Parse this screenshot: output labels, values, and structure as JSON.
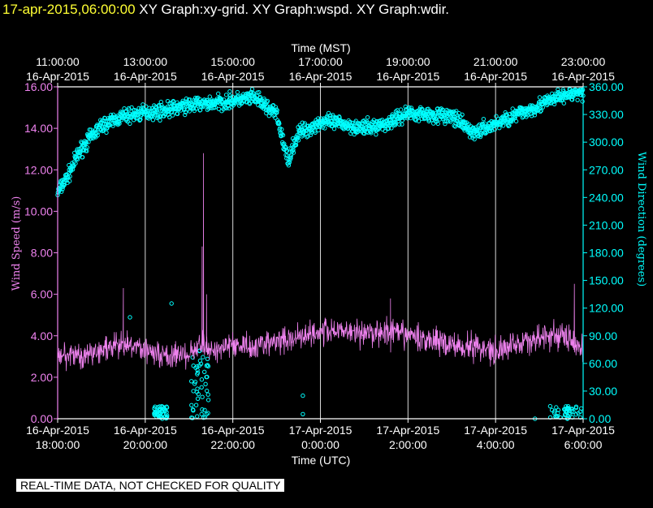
{
  "header": {
    "timestamp": "17-apr-2015,06:00:00",
    "graphs": [
      "XY Graph:xy-grid.",
      "XY Graph:wspd.",
      "XY Graph:wdir."
    ]
  },
  "footer": {
    "qc_notice": "REAL-TIME DATA, NOT CHECKED FOR QUALITY"
  },
  "colors": {
    "background": "#000000",
    "axis": "#ffffff",
    "wind_speed": "#ee82ee",
    "wind_direction": "#00ffff",
    "timestamp": "#ffff33"
  },
  "chart_data": {
    "type": "line",
    "top_axis_title": "Time (MST)",
    "bottom_axis_title": "Time (UTC)",
    "left_axis_title": "Wind Speed  (m/s)",
    "right_axis_title": "Wind Direction  (degrees)",
    "grid": "vertical",
    "x_range_utc": [
      "16-Apr-2015 18:00:00",
      "17-Apr-2015 06:00:00"
    ],
    "x_ticks_utc": [
      {
        "date": "16-Apr-2015",
        "time": "18:00:00"
      },
      {
        "date": "16-Apr-2015",
        "time": "20:00:00"
      },
      {
        "date": "16-Apr-2015",
        "time": "22:00:00"
      },
      {
        "date": "17-Apr-2015",
        "time": "0:00:00"
      },
      {
        "date": "17-Apr-2015",
        "time": "2:00:00"
      },
      {
        "date": "17-Apr-2015",
        "time": "4:00:00"
      },
      {
        "date": "17-Apr-2015",
        "time": "6:00:00"
      }
    ],
    "x_ticks_mst": [
      {
        "time": "11:00:00",
        "date": "16-Apr-2015"
      },
      {
        "time": "13:00:00",
        "date": "16-Apr-2015"
      },
      {
        "time": "15:00:00",
        "date": "16-Apr-2015"
      },
      {
        "time": "17:00:00",
        "date": "16-Apr-2015"
      },
      {
        "time": "19:00:00",
        "date": "16-Apr-2015"
      },
      {
        "time": "21:00:00",
        "date": "16-Apr-2015"
      },
      {
        "time": "23:00:00",
        "date": "16-Apr-2015"
      }
    ],
    "y_left": {
      "range": [
        0,
        16
      ],
      "ticks": [
        "0.00",
        "2.00",
        "4.00",
        "6.00",
        "8.00",
        "10.00",
        "12.00",
        "14.00",
        "16.00"
      ]
    },
    "y_right": {
      "range": [
        0,
        360
      ],
      "ticks": [
        "0.00",
        "30.00",
        "60.00",
        "90.00",
        "120.00",
        "150.00",
        "180.00",
        "210.00",
        "240.00",
        "270.00",
        "300.00",
        "330.00",
        "360.00"
      ]
    },
    "series": [
      {
        "key": "wind_speed",
        "unit": "m/s",
        "style": "line",
        "hours_since_start": [
          0,
          0.5,
          1,
          1.5,
          2,
          2.5,
          3,
          3.25,
          3.5,
          4,
          4.5,
          5,
          5.5,
          6,
          6.5,
          7,
          7.5,
          8,
          8.5,
          9,
          9.5,
          10,
          10.5,
          11,
          11.5,
          12
        ],
        "mean": [
          3.2,
          3.0,
          3.3,
          3.5,
          3.4,
          3.0,
          3.1,
          3.6,
          3.3,
          3.6,
          3.5,
          3.7,
          4.0,
          4.2,
          4.3,
          4.1,
          4.2,
          4.0,
          3.8,
          3.6,
          3.5,
          3.3,
          3.6,
          3.9,
          4.0,
          3.4
        ],
        "peaks": [
          [
            3.33,
            12.8
          ],
          [
            3.3,
            8.3
          ],
          [
            3.4,
            6.0
          ],
          [
            1.5,
            6.3
          ],
          [
            7.6,
            5.8
          ],
          [
            11.8,
            6.5
          ]
        ]
      },
      {
        "key": "wind_direction",
        "unit": "degrees",
        "style": "markers",
        "hours_since_start": [
          0,
          0.25,
          0.5,
          0.75,
          1,
          1.5,
          2,
          2.5,
          3,
          3.5,
          4,
          4.5,
          5,
          5.25,
          5.5,
          5.75,
          6,
          6.5,
          7,
          7.5,
          8,
          8.5,
          9,
          9.5,
          10,
          10.5,
          11,
          11.5,
          12
        ],
        "mean": [
          245,
          265,
          290,
          305,
          318,
          328,
          332,
          335,
          340,
          342,
          345,
          348,
          330,
          280,
          310,
          315,
          322,
          320,
          315,
          320,
          332,
          330,
          328,
          310,
          320,
          330,
          340,
          350,
          355
        ],
        "outliers": [
          [
            3.3,
            10
          ],
          [
            3.2,
            50
          ],
          [
            3.4,
            5
          ],
          [
            3.1,
            30
          ],
          [
            2.6,
            125
          ],
          [
            1.65,
            110
          ],
          [
            5.6,
            5
          ],
          [
            5.6,
            25
          ],
          [
            11.6,
            8
          ],
          [
            10.9,
            0
          ]
        ]
      }
    ]
  }
}
